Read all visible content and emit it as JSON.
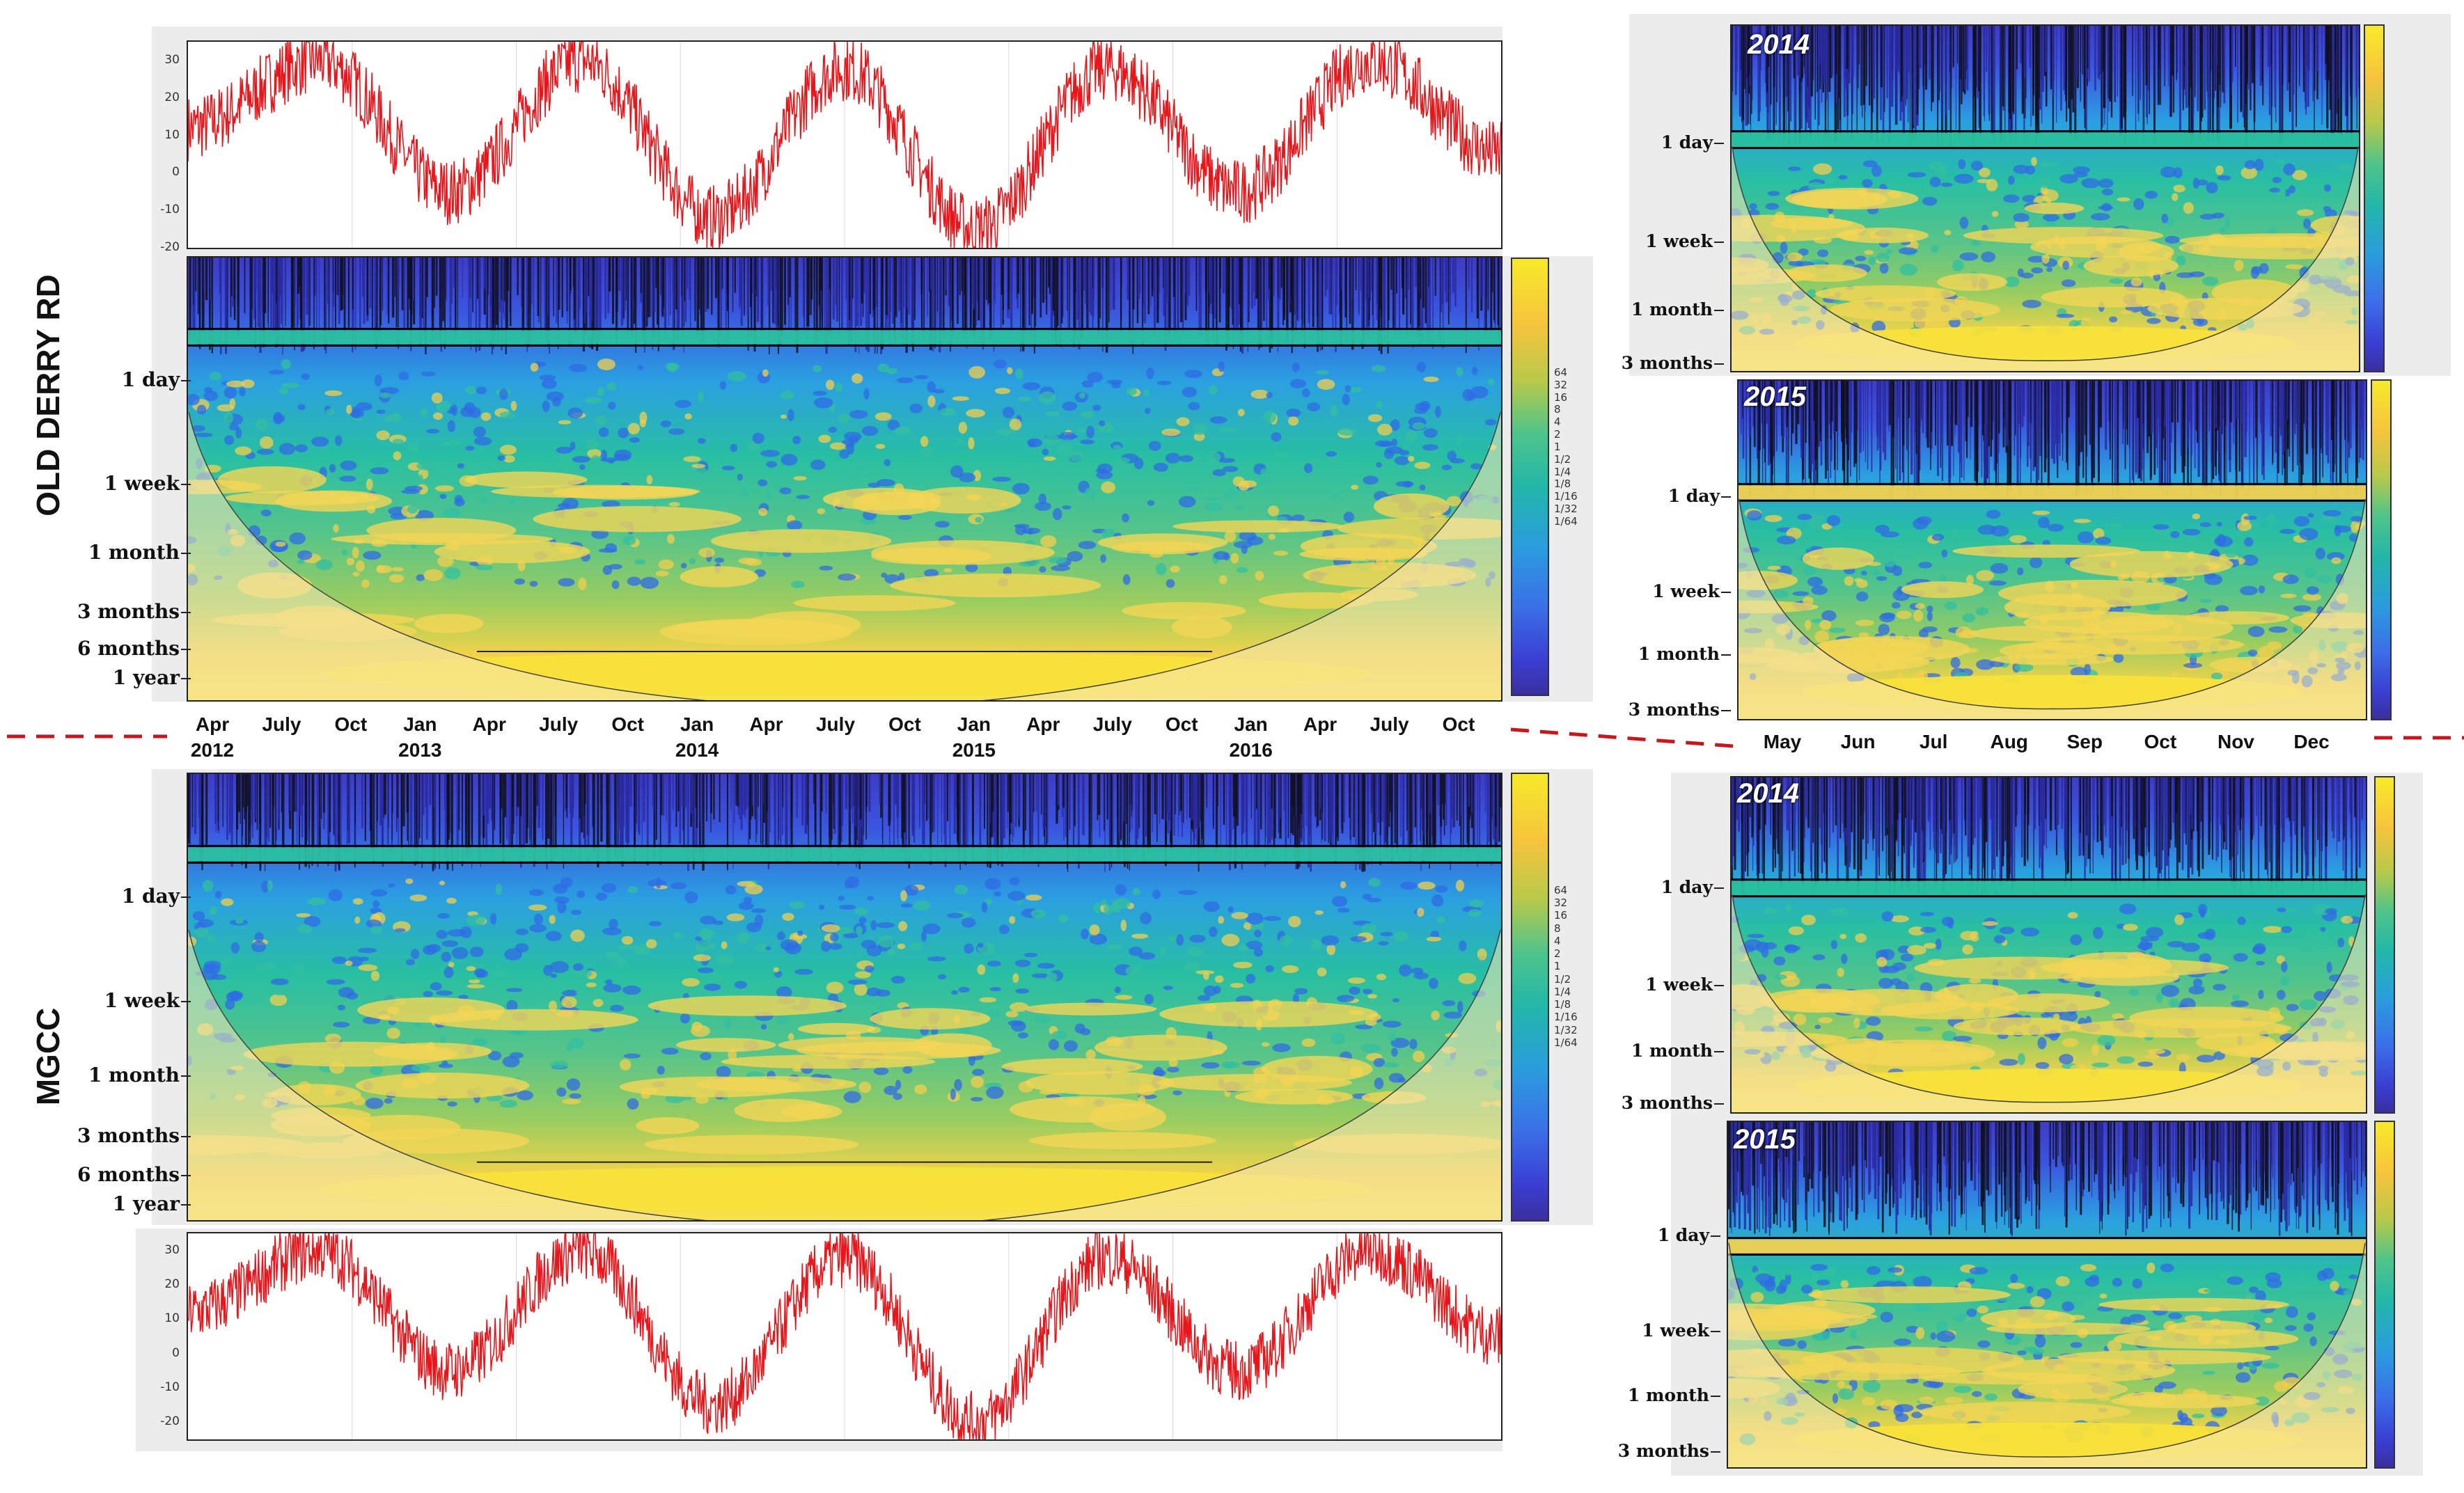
{
  "chart_data": [
    {
      "type": "line",
      "name": "Old Derry Rd temperature series",
      "series": [
        {
          "name": "temperature",
          "color": "#e8161b"
        }
      ],
      "yticks": [
        "30",
        "20",
        "10",
        "0",
        "-10",
        "-20"
      ],
      "ylim": [
        -20,
        35
      ],
      "x": [
        "2012-04",
        "2012-07",
        "2013-01",
        "2013-07",
        "2014-01",
        "2014-07",
        "2015-01",
        "2015-07",
        "2016-01",
        "2016-07",
        "2016-11"
      ],
      "values": [
        12,
        30,
        -5,
        30,
        -12,
        28,
        -15,
        28,
        -5,
        30,
        5
      ]
    },
    {
      "type": "heatmap",
      "name": "Old Derry Rd wavelet spectrum",
      "yticks": [
        "1 day",
        "1 week",
        "1 month",
        "3 months",
        "6 months",
        "1 year"
      ],
      "xticks": [
        "Apr\n2012",
        "July",
        "Oct",
        "Jan\n2013",
        "Apr",
        "July",
        "Oct",
        "Jan\n2014",
        "Apr",
        "July",
        "Oct",
        "Jan\n2015",
        "Apr",
        "July",
        "Oct",
        "Jan\n2016",
        "Apr",
        "July",
        "Oct"
      ],
      "colorbar": [
        "64",
        "32",
        "16",
        "8",
        "4",
        "2",
        "1",
        "1/2",
        "1/4",
        "1/8",
        "1/16",
        "1/32",
        "1/64"
      ]
    },
    {
      "type": "heatmap",
      "name": "MGCC wavelet spectrum",
      "yticks": [
        "1 day",
        "1 week",
        "1 month",
        "3 months",
        "6 months",
        "1 year"
      ],
      "colorbar": [
        "64",
        "32",
        "16",
        "8",
        "4",
        "2",
        "1",
        "1/2",
        "1/4",
        "1/8",
        "1/16",
        "1/32",
        "1/64"
      ]
    },
    {
      "type": "line",
      "name": "MGCC temperature series",
      "series": [
        {
          "name": "temperature",
          "color": "#e8161b"
        }
      ],
      "yticks": [
        "30",
        "20",
        "10",
        "0",
        "-10",
        "-20"
      ],
      "ylim": [
        -25,
        35
      ],
      "values": [
        12,
        30,
        -5,
        30,
        -15,
        28,
        -20,
        28,
        -5,
        30,
        5
      ]
    },
    {
      "type": "heatmap",
      "name": "Old Derry Rd 2014",
      "year": "2014",
      "yticks": [
        "1 day",
        "1 week",
        "1 month",
        "3 months"
      ]
    },
    {
      "type": "heatmap",
      "name": "Old Derry Rd 2015",
      "year": "2015",
      "yticks": [
        "1 day",
        "1 week",
        "1 month",
        "3 months"
      ],
      "xticks": [
        "May",
        "Jun",
        "Jul",
        "Aug",
        "Sep",
        "Oct",
        "Nov",
        "Dec"
      ]
    },
    {
      "type": "heatmap",
      "name": "MGCC 2014",
      "year": "2014",
      "yticks": [
        "1 day",
        "1 week",
        "1 month",
        "3 months"
      ]
    },
    {
      "type": "heatmap",
      "name": "MGCC 2015",
      "year": "2015",
      "yticks": [
        "1 day",
        "1 week",
        "1 month",
        "3 months"
      ]
    }
  ],
  "labels": {
    "station_top": "OLD DERRY RD",
    "station_bottom": "MGCC",
    "year_a": "2014",
    "year_b": "2015"
  },
  "main_xticks": [
    {
      "m": "Apr",
      "y": "2012"
    },
    {
      "m": "July",
      "y": ""
    },
    {
      "m": "Oct",
      "y": ""
    },
    {
      "m": "Jan",
      "y": "2013"
    },
    {
      "m": "Apr",
      "y": ""
    },
    {
      "m": "July",
      "y": ""
    },
    {
      "m": "Oct",
      "y": ""
    },
    {
      "m": "Jan",
      "y": "2014"
    },
    {
      "m": "Apr",
      "y": ""
    },
    {
      "m": "July",
      "y": ""
    },
    {
      "m": "Oct",
      "y": ""
    },
    {
      "m": "Jan",
      "y": "2015"
    },
    {
      "m": "Apr",
      "y": ""
    },
    {
      "m": "July",
      "y": ""
    },
    {
      "m": "Oct",
      "y": ""
    },
    {
      "m": "Jan",
      "y": "2016"
    },
    {
      "m": "Apr",
      "y": ""
    },
    {
      "m": "July",
      "y": ""
    },
    {
      "m": "Oct",
      "y": ""
    }
  ],
  "small_xticks": [
    "May",
    "Jun",
    "Jul",
    "Aug",
    "Sep",
    "Oct",
    "Nov",
    "Dec"
  ],
  "period_ticks_main": [
    "1 day",
    "1 week",
    "1 month",
    "3 months",
    "6 months",
    "1 year"
  ],
  "period_ticks_small": [
    "1 day",
    "1 week",
    "1 month",
    "3 months"
  ],
  "temp_ticks": [
    "30",
    "20",
    "10",
    "0",
    "-10",
    "-20"
  ],
  "colorbar_ticks": [
    "64",
    "32",
    "16",
    "8",
    "4",
    "2",
    "1",
    "1/2",
    "1/4",
    "1/8",
    "1/16",
    "1/32",
    "1/64"
  ],
  "colors": {
    "temp_line": "#e8161b",
    "divider": "#c8161b",
    "high_freq": "#3b3fc9",
    "mid": "#2fb6a3",
    "low_freq": "#f5d64a"
  }
}
